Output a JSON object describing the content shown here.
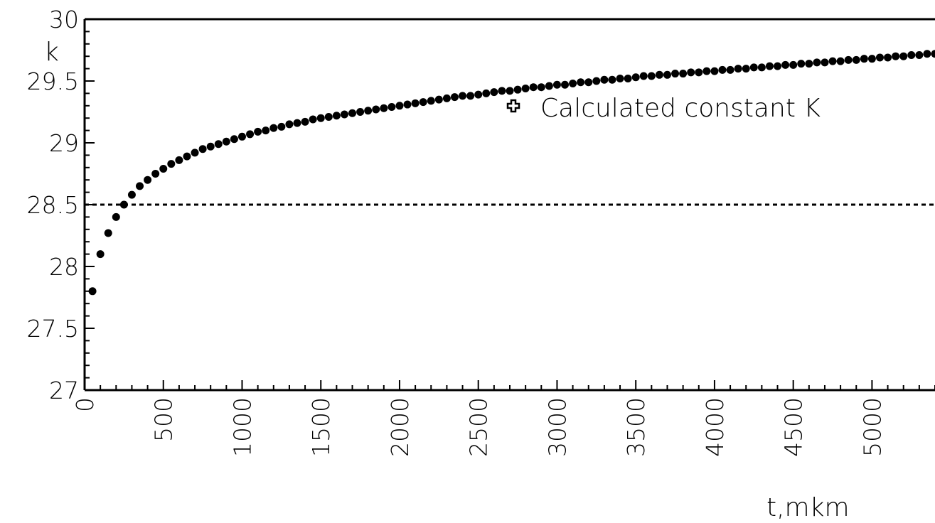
{
  "chart_data": {
    "type": "scatter",
    "xlabel": "t,mkm",
    "ylabel": "k",
    "xlim": [
      0,
      5400
    ],
    "ylim": [
      27,
      30
    ],
    "x_ticks": [
      {
        "value": 0,
        "label": "0"
      },
      {
        "value": 500,
        "label": "500"
      },
      {
        "value": 1000,
        "label": "1000"
      },
      {
        "value": 1500,
        "label": "1500"
      },
      {
        "value": 2000,
        "label": "2000"
      },
      {
        "value": 2500,
        "label": "2500"
      },
      {
        "value": 3000,
        "label": "3000"
      },
      {
        "value": 3500,
        "label": "3500"
      },
      {
        "value": 4000,
        "label": "4000"
      },
      {
        "value": 4500,
        "label": "4500"
      },
      {
        "value": 5000,
        "label": "5000"
      }
    ],
    "y_ticks": [
      {
        "value": 27,
        "label": "27"
      },
      {
        "value": 27.5,
        "label": "27.5"
      },
      {
        "value": 28,
        "label": "28"
      },
      {
        "value": 28.5,
        "label": "28.5"
      },
      {
        "value": 29,
        "label": "29"
      },
      {
        "value": 29.5,
        "label": "29.5"
      },
      {
        "value": 30,
        "label": "30"
      }
    ],
    "reference_line": {
      "y": 28.5,
      "style": "dashed"
    },
    "legend": {
      "label": "Calculated constant K",
      "marker": "cross",
      "placement": "top-right"
    },
    "series": [
      {
        "style": "dots",
        "color": "#000000",
        "x": [
          50,
          100,
          150,
          200,
          250,
          300,
          350,
          400,
          450,
          500,
          550,
          600,
          650,
          700,
          750,
          800,
          850,
          900,
          950,
          1000,
          1050,
          1100,
          1150,
          1200,
          1250,
          1300,
          1350,
          1400,
          1450,
          1500,
          1550,
          1600,
          1650,
          1700,
          1750,
          1800,
          1850,
          1900,
          1950,
          2000,
          2050,
          2100,
          2150,
          2200,
          2250,
          2300,
          2350,
          2400,
          2450,
          2500,
          2550,
          2600,
          2650,
          2700,
          2750,
          2800,
          2850,
          2900,
          2950,
          3000,
          3050,
          3100,
          3150,
          3200,
          3250,
          3300,
          3350,
          3400,
          3450,
          3500,
          3550,
          3600,
          3650,
          3700,
          3750,
          3800,
          3850,
          3900,
          3950,
          4000,
          4050,
          4100,
          4150,
          4200,
          4250,
          4300,
          4350,
          4400,
          4450,
          4500,
          4550,
          4600,
          4650,
          4700,
          4750,
          4800,
          4850,
          4900,
          4950,
          5000,
          5050,
          5100,
          5150,
          5200,
          5250,
          5300,
          5350,
          5400
        ],
        "y": [
          27.8,
          28.1,
          28.27,
          28.4,
          28.5,
          28.58,
          28.65,
          28.7,
          28.75,
          28.79,
          28.83,
          28.86,
          28.89,
          28.92,
          28.95,
          28.97,
          28.99,
          29.01,
          29.03,
          29.05,
          29.07,
          29.09,
          29.1,
          29.12,
          29.13,
          29.15,
          29.16,
          29.17,
          29.19,
          29.2,
          29.21,
          29.22,
          29.23,
          29.24,
          29.25,
          29.26,
          29.27,
          29.28,
          29.29,
          29.3,
          29.31,
          29.32,
          29.33,
          29.34,
          29.35,
          29.36,
          29.37,
          29.38,
          29.38,
          29.39,
          29.4,
          29.41,
          29.42,
          29.42,
          29.43,
          29.44,
          29.45,
          29.45,
          29.46,
          29.47,
          29.47,
          29.48,
          29.49,
          29.49,
          29.5,
          29.51,
          29.51,
          29.52,
          29.52,
          29.53,
          29.54,
          29.54,
          29.55,
          29.55,
          29.56,
          29.56,
          29.57,
          29.57,
          29.58,
          29.58,
          29.59,
          29.59,
          29.6,
          29.6,
          29.61,
          29.61,
          29.62,
          29.62,
          29.63,
          29.63,
          29.64,
          29.64,
          29.65,
          29.65,
          29.66,
          29.66,
          29.67,
          29.67,
          29.68,
          29.68,
          29.69,
          29.69,
          29.7,
          29.7,
          29.71,
          29.71,
          29.72,
          29.72
        ]
      }
    ]
  }
}
